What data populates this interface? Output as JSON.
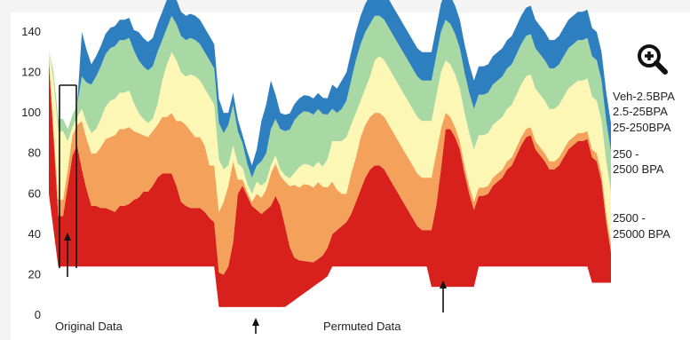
{
  "chart_data": {
    "type": "area",
    "title": "",
    "xlabel": "",
    "ylabel": "",
    "ylim": [
      0,
      140
    ],
    "yticks": [
      0,
      20,
      40,
      60,
      80,
      100,
      120,
      140
    ],
    "grid": false,
    "legend_placement": "right",
    "x": [
      0,
      1,
      2,
      3,
      4,
      5,
      6,
      7,
      8,
      9,
      10,
      11,
      12,
      13,
      14,
      15,
      16,
      17,
      18,
      19,
      20,
      21,
      22,
      23,
      24,
      25,
      26,
      27,
      28,
      29,
      30,
      31,
      32,
      33,
      34,
      35,
      36,
      37,
      38,
      39,
      40,
      41,
      42,
      43,
      44,
      45,
      46,
      47,
      48,
      49,
      50,
      51,
      52,
      53,
      54,
      55,
      56,
      57,
      58,
      59,
      60,
      61,
      62,
      63,
      64,
      65,
      66,
      67,
      68,
      69,
      70,
      71,
      72,
      73,
      74,
      75,
      76,
      77,
      78,
      79,
      80,
      81,
      82,
      83,
      84,
      85,
      86,
      87,
      88,
      89,
      90,
      91,
      92,
      93,
      94,
      95,
      96,
      97,
      98,
      99,
      100,
      101,
      102,
      103,
      104,
      105,
      106,
      107,
      108,
      109,
      110,
      111,
      112,
      113,
      114,
      115,
      116,
      117,
      118,
      119
    ],
    "series": [
      {
        "name": "2500 - 25000 BPA",
        "color": "#d8201c",
        "values": [
          65,
          46,
          25,
          25,
          40,
          55,
          60,
          48,
          38,
          30,
          30,
          29,
          29,
          28,
          27,
          30,
          30,
          31,
          33,
          34,
          37,
          37,
          40,
          44,
          46,
          46,
          46,
          40,
          32,
          30,
          29,
          29,
          29,
          27,
          24,
          22,
          17,
          16,
          20,
          32,
          56,
          60,
          55,
          50,
          48,
          46,
          48,
          50,
          55,
          50,
          40,
          28,
          21,
          18,
          16,
          14,
          12,
          12,
          12,
          14,
          16,
          18,
          20,
          22,
          26,
          32,
          38,
          44,
          48,
          50,
          50,
          48,
          44,
          40,
          36,
          32,
          28,
          24,
          20,
          18,
          18,
          28,
          40,
          58,
          78,
          78,
          74,
          68,
          56,
          46,
          38,
          35,
          35,
          36,
          40,
          42,
          44,
          48,
          50,
          55,
          60,
          64,
          65,
          58,
          55,
          52,
          48,
          48,
          50,
          54,
          58,
          60,
          62,
          62,
          63,
          62,
          60,
          50,
          30,
          15
        ]
      },
      {
        "name": "250 - 2500 BPA",
        "color": "#f4a15b",
        "values": [
          4,
          4,
          8,
          8,
          8,
          10,
          10,
          24,
          25,
          26,
          26,
          30,
          34,
          36,
          38,
          38,
          38,
          38,
          34,
          32,
          28,
          27,
          27,
          26,
          28,
          28,
          30,
          32,
          40,
          40,
          38,
          35,
          35,
          33,
          26,
          28,
          30,
          36,
          40,
          40,
          7,
          3,
          2,
          2,
          8,
          8,
          10,
          16,
          16,
          15,
          22,
          30,
          36,
          36,
          38,
          38,
          37,
          38,
          34,
          30,
          26,
          20,
          16,
          14,
          20,
          22,
          26,
          26,
          26,
          26,
          26,
          26,
          26,
          26,
          26,
          26,
          26,
          26,
          26,
          26,
          26,
          26,
          26,
          20,
          8,
          6,
          5,
          4,
          4,
          4,
          4,
          4,
          4,
          4,
          4,
          4,
          4,
          4,
          4,
          4,
          4,
          4,
          4,
          4,
          4,
          4,
          4,
          4,
          4,
          4,
          4,
          4,
          4,
          4,
          4,
          4,
          4,
          4,
          4,
          4
        ],
        "note_values_are_band_thickness": true
      },
      {
        "name": "25-250BPA",
        "color": "#fdf7b5",
        "values": [
          2,
          24,
          34,
          34,
          14,
          4,
          4,
          6,
          8,
          10,
          12,
          14,
          16,
          18,
          18,
          18,
          18,
          18,
          14,
          10,
          8,
          7,
          6,
          10,
          18,
          26,
          30,
          30,
          24,
          24,
          28,
          30,
          28,
          28,
          34,
          30,
          26,
          16,
          10,
          8,
          8,
          6,
          4,
          4,
          6,
          6,
          4,
          4,
          4,
          3,
          3,
          4,
          6,
          10,
          10,
          10,
          10,
          10,
          10,
          14,
          20,
          24,
          26,
          28,
          24,
          22,
          18,
          18,
          20,
          26,
          28,
          28,
          28,
          28,
          28,
          28,
          28,
          28,
          28,
          28,
          28,
          28,
          28,
          28,
          26,
          26,
          26,
          26,
          26,
          26,
          26,
          26,
          26,
          26,
          26,
          26,
          26,
          26,
          26,
          26,
          26,
          26,
          26,
          26,
          26,
          26,
          26,
          26,
          26,
          26,
          26,
          26,
          26,
          26,
          26,
          26,
          26,
          26,
          26,
          26
        ]
      },
      {
        "name": "2.5-25BPA",
        "color": "#a8d8a4",
        "values": [
          0,
          4,
          6,
          6,
          6,
          6,
          6,
          16,
          20,
          24,
          26,
          26,
          26,
          26,
          26,
          26,
          26,
          26,
          26,
          26,
          26,
          26,
          26,
          26,
          20,
          18,
          18,
          18,
          18,
          18,
          18,
          18,
          18,
          18,
          18,
          18,
          18,
          18,
          20,
          20,
          16,
          12,
          10,
          8,
          8,
          12,
          14,
          18,
          18,
          20,
          22,
          24,
          26,
          26,
          26,
          26,
          26,
          26,
          26,
          22,
          16,
          14,
          16,
          18,
          22,
          26,
          28,
          28,
          26,
          22,
          20,
          20,
          20,
          20,
          20,
          20,
          20,
          20,
          20,
          20,
          20,
          20,
          20,
          20,
          20,
          20,
          20,
          20,
          20,
          20,
          20,
          20,
          20,
          20,
          20,
          20,
          20,
          20,
          20,
          20,
          20,
          20,
          20,
          20,
          20,
          20,
          20,
          20,
          20,
          20,
          20,
          20,
          20,
          20,
          20,
          20,
          20,
          20,
          20,
          20
        ]
      },
      {
        "name": "Veh-2.5BPA",
        "color": "#2e7fc0",
        "values": [
          0,
          0,
          0,
          0,
          0,
          0,
          0,
          22,
          16,
          10,
          10,
          10,
          10,
          10,
          10,
          10,
          10,
          10,
          10,
          14,
          14,
          14,
          14,
          14,
          14,
          14,
          12,
          12,
          12,
          12,
          12,
          12,
          12,
          12,
          12,
          12,
          12,
          10,
          6,
          6,
          6,
          4,
          6,
          6,
          8,
          20,
          24,
          24,
          12,
          8,
          8,
          8,
          8,
          8,
          8,
          8,
          8,
          8,
          8,
          8,
          12,
          12,
          14,
          14,
          14,
          14,
          14,
          14,
          14,
          14,
          14,
          14,
          14,
          14,
          14,
          14,
          14,
          14,
          14,
          14,
          14,
          14,
          14,
          14,
          14,
          14,
          14,
          14,
          14,
          14,
          14,
          14,
          14,
          14,
          14,
          14,
          14,
          14,
          14,
          14,
          14,
          14,
          14,
          14,
          14,
          14,
          14,
          14,
          14,
          14,
          14,
          14,
          14,
          14,
          14,
          14,
          14,
          14,
          14,
          14
        ]
      }
    ],
    "annotations": [
      "Original Data",
      "Permuted Data"
    ]
  },
  "legend": {
    "veh": "Veh-2.5BPA",
    "b25": "2.5-25BPA",
    "b250": "25-250BPA",
    "b2500_1": "250 -",
    "b2500_2": "2500 BPA",
    "b25000_1": "2500 -",
    "b25000_2": "25000 BPA"
  },
  "labels": {
    "original": "Original Data",
    "permuted": "Permuted Data"
  },
  "icons": {
    "zoom": "zoom-in-icon"
  }
}
